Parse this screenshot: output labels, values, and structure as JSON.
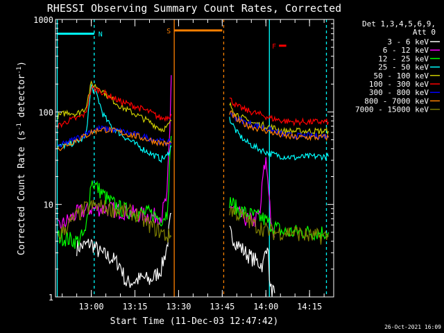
{
  "chart_data": {
    "type": "line",
    "title": "RHESSI Observing Summary Count Rates, Corrected",
    "xlabel": "Start Time (11-Dec-03 12:47:42)",
    "ylabel_main": "Corrected Count Rate (s",
    "ylabel_exp": "-1",
    "ylabel_mid": " detector",
    "ylabel_end": ")",
    "ylog": true,
    "ylim": [
      1,
      1000
    ],
    "xlim_min": [
      47.7,
      143.3
    ],
    "y_ticks": [
      "1",
      "10",
      "100",
      "1000"
    ],
    "x_ticks": [
      {
        "label": "13:00",
        "m": 60
      },
      {
        "label": "13:15",
        "m": 75
      },
      {
        "label": "13:30",
        "m": 90
      },
      {
        "label": "13:45",
        "m": 105
      },
      {
        "label": "14:00",
        "m": 120
      },
      {
        "label": "14:15",
        "m": 135
      }
    ],
    "legend_header": [
      "Det 1,3,4,5,6,9,",
      "Att 0"
    ],
    "legend_position": "top-right",
    "timestamp": "26-Oct-2021 16:09",
    "flags": [
      {
        "label": "N",
        "color": "#00ffff",
        "start": 48.5,
        "end": 61,
        "y": 700
      },
      {
        "label": "S",
        "color": "#ff8000",
        "start": 88.5,
        "end": 105,
        "y": 760
      },
      {
        "label": "F",
        "color": "#ff0000",
        "start": 124.5,
        "end": 127,
        "y": 520
      }
    ],
    "markers": [
      {
        "color": "#00ffff",
        "style": "solid",
        "m": 48.3
      },
      {
        "color": "#00ffff",
        "style": "dashed",
        "m": 61
      },
      {
        "color": "#ff8000",
        "style": "solid",
        "m": 88.5
      },
      {
        "color": "#ff8000",
        "style": "dashed",
        "m": 105.5
      },
      {
        "color": "#00ffff",
        "style": "solid",
        "m": 121.2
      },
      {
        "color": "#00ffff",
        "style": "dashed",
        "m": 140.8
      }
    ],
    "segments": [
      [
        48.5,
        87.5
      ],
      [
        107.5,
        141.5
      ]
    ],
    "series": [
      {
        "name": "3 - 6 keV",
        "color": "#ffffff",
        "values": [
          [
            55,
            3.4
          ],
          [
            60,
            3.8
          ],
          [
            63,
            3.0
          ],
          [
            67,
            2.6
          ],
          [
            70,
            2.2
          ],
          [
            72,
            1.4
          ],
          [
            75,
            1.5
          ],
          [
            78,
            1.6
          ],
          [
            80,
            1.5
          ],
          [
            82,
            1.7
          ],
          [
            84,
            2.0
          ],
          [
            86,
            3.5
          ],
          [
            87.5,
            8
          ],
          [
            107.5,
            5
          ],
          [
            110,
            3.8
          ],
          [
            113,
            3.0
          ],
          [
            116,
            2.5
          ],
          [
            119,
            2.2
          ],
          [
            120.5,
            4
          ],
          [
            121.5,
            1.2
          ],
          [
            123,
            1.1
          ]
        ]
      },
      {
        "name": "6 - 12 keV",
        "color": "#ff00ff",
        "values": [
          [
            48.5,
            5.5
          ],
          [
            55,
            8
          ],
          [
            60,
            9
          ],
          [
            65,
            9
          ],
          [
            70,
            8.5
          ],
          [
            75,
            8
          ],
          [
            80,
            7.5
          ],
          [
            84,
            7.5
          ],
          [
            86,
            12
          ],
          [
            87,
            60
          ],
          [
            87.5,
            250
          ],
          [
            107.5,
            10
          ],
          [
            110,
            8
          ],
          [
            113,
            7
          ],
          [
            116,
            6.5
          ],
          [
            118,
            8
          ],
          [
            119,
            20
          ],
          [
            120,
            30
          ],
          [
            121,
            15
          ],
          [
            122,
            5
          ],
          [
            123,
            4.5
          ]
        ]
      },
      {
        "name": "12 - 25 keV",
        "color": "#00ff00",
        "values": [
          [
            48.5,
            4.5
          ],
          [
            55,
            4.0
          ],
          [
            58,
            4.8
          ],
          [
            60,
            18
          ],
          [
            63,
            14
          ],
          [
            66,
            11
          ],
          [
            70,
            9
          ],
          [
            75,
            8
          ],
          [
            80,
            8
          ],
          [
            84,
            7
          ],
          [
            86,
            8
          ],
          [
            87.5,
            55
          ],
          [
            107.5,
            11
          ],
          [
            110,
            9
          ],
          [
            113,
            8
          ],
          [
            116,
            7.5
          ],
          [
            119,
            7
          ],
          [
            122,
            6
          ],
          [
            126,
            5
          ],
          [
            130,
            5
          ],
          [
            135,
            5
          ],
          [
            141.5,
            5
          ]
        ]
      },
      {
        "name": "25 - 50 keV",
        "color": "#00ffff",
        "values": [
          [
            48.5,
            42
          ],
          [
            52,
            44
          ],
          [
            55,
            48
          ],
          [
            58,
            52
          ],
          [
            60,
            190
          ],
          [
            62,
            150
          ],
          [
            64,
            95
          ],
          [
            66,
            75
          ],
          [
            70,
            58
          ],
          [
            75,
            45
          ],
          [
            80,
            36
          ],
          [
            84,
            31
          ],
          [
            86,
            33
          ],
          [
            87.5,
            43
          ],
          [
            107.5,
            85
          ],
          [
            110,
            60
          ],
          [
            113,
            48
          ],
          [
            116,
            42
          ],
          [
            119,
            38
          ],
          [
            122,
            35
          ],
          [
            126,
            33
          ],
          [
            130,
            32
          ],
          [
            135,
            33
          ],
          [
            141.5,
            33
          ]
        ]
      },
      {
        "name": "50 - 100 keV",
        "color": "#cccc00",
        "values": [
          [
            48.5,
            90
          ],
          [
            52,
            100
          ],
          [
            55,
            95
          ],
          [
            58,
            110
          ],
          [
            60,
            200
          ],
          [
            63,
            180
          ],
          [
            66,
            145
          ],
          [
            70,
            115
          ],
          [
            75,
            95
          ],
          [
            80,
            78
          ],
          [
            84,
            65
          ],
          [
            86,
            68
          ],
          [
            87.5,
            80
          ],
          [
            107.5,
            120
          ],
          [
            110,
            95
          ],
          [
            113,
            82
          ],
          [
            116,
            75
          ],
          [
            119,
            72
          ],
          [
            122,
            68
          ],
          [
            126,
            62
          ],
          [
            130,
            62
          ],
          [
            135,
            62
          ],
          [
            141.5,
            62
          ]
        ]
      },
      {
        "name": "100 - 300 keV",
        "color": "#ff0000",
        "values": [
          [
            48.5,
            70
          ],
          [
            52,
            80
          ],
          [
            55,
            85
          ],
          [
            58,
            95
          ],
          [
            60,
            180
          ],
          [
            63,
            170
          ],
          [
            66,
            150
          ],
          [
            70,
            130
          ],
          [
            75,
            115
          ],
          [
            80,
            100
          ],
          [
            84,
            85
          ],
          [
            86,
            88
          ],
          [
            87.5,
            95
          ],
          [
            107.5,
            140
          ],
          [
            110,
            115
          ],
          [
            113,
            105
          ],
          [
            116,
            98
          ],
          [
            119,
            92
          ],
          [
            122,
            85
          ],
          [
            126,
            80
          ],
          [
            130,
            78
          ],
          [
            135,
            78
          ],
          [
            141.5,
            78
          ]
        ]
      },
      {
        "name": "300 - 800 keV",
        "color": "#0000ff",
        "values": [
          [
            48.5,
            42
          ],
          [
            52,
            47
          ],
          [
            55,
            52
          ],
          [
            58,
            58
          ],
          [
            60,
            63
          ],
          [
            63,
            66
          ],
          [
            66,
            65
          ],
          [
            70,
            62
          ],
          [
            75,
            57
          ],
          [
            80,
            52
          ],
          [
            84,
            48
          ],
          [
            86,
            47
          ],
          [
            87.5,
            47
          ],
          [
            107.5,
            100
          ],
          [
            110,
            85
          ],
          [
            113,
            77
          ],
          [
            116,
            72
          ],
          [
            119,
            68
          ],
          [
            122,
            63
          ],
          [
            126,
            57
          ],
          [
            130,
            55
          ],
          [
            135,
            55
          ],
          [
            141.5,
            55
          ]
        ]
      },
      {
        "name": "800 - 7000 keV",
        "color": "#ff8000",
        "values": [
          [
            48.5,
            40
          ],
          [
            52,
            45
          ],
          [
            55,
            50
          ],
          [
            58,
            55
          ],
          [
            60,
            60
          ],
          [
            63,
            65
          ],
          [
            66,
            64
          ],
          [
            70,
            60
          ],
          [
            75,
            55
          ],
          [
            80,
            50
          ],
          [
            84,
            46
          ],
          [
            86,
            45
          ],
          [
            87.5,
            46
          ],
          [
            107.5,
            100
          ],
          [
            110,
            82
          ],
          [
            113,
            73
          ],
          [
            116,
            68
          ],
          [
            119,
            64
          ],
          [
            122,
            60
          ],
          [
            126,
            55
          ],
          [
            130,
            53
          ],
          [
            135,
            53
          ],
          [
            141.5,
            53
          ]
        ]
      },
      {
        "name": "7000 - 15000 keV",
        "color": "#808000",
        "values": [
          [
            48.5,
            4.5
          ],
          [
            52,
            6
          ],
          [
            55,
            7.5
          ],
          [
            58,
            9
          ],
          [
            60,
            9.5
          ],
          [
            63,
            9.5
          ],
          [
            66,
            9.0
          ],
          [
            70,
            8.5
          ],
          [
            75,
            8
          ],
          [
            80,
            6
          ],
          [
            84,
            5
          ],
          [
            86,
            4.5
          ],
          [
            87.5,
            4.5
          ],
          [
            107.5,
            9
          ],
          [
            110,
            8
          ],
          [
            113,
            7
          ],
          [
            116,
            6
          ],
          [
            119,
            5.5
          ],
          [
            122,
            5
          ],
          [
            126,
            5
          ],
          [
            130,
            5
          ],
          [
            135,
            4.5
          ],
          [
            141.5,
            4.5
          ]
        ]
      }
    ]
  }
}
